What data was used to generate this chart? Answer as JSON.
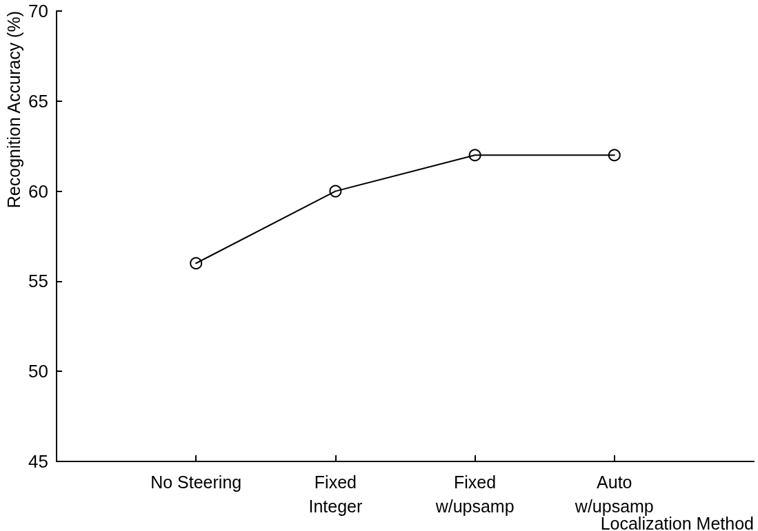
{
  "chart_data": {
    "type": "line",
    "xlabel": "Localization Method",
    "ylabel": "Recognition Accuracy (%)",
    "categories": [
      "No Steering",
      "Fixed\nInteger",
      "Fixed\nw/upsamp",
      "Auto\nw/upsamp"
    ],
    "series": [
      {
        "color": "#000000",
        "values": [
          56,
          60,
          62,
          62
        ]
      }
    ],
    "ylim": [
      45,
      70
    ],
    "yticks": [
      45,
      50,
      55,
      60,
      65,
      70
    ],
    "grid": false,
    "marker": "circle",
    "line_style": "solid"
  }
}
